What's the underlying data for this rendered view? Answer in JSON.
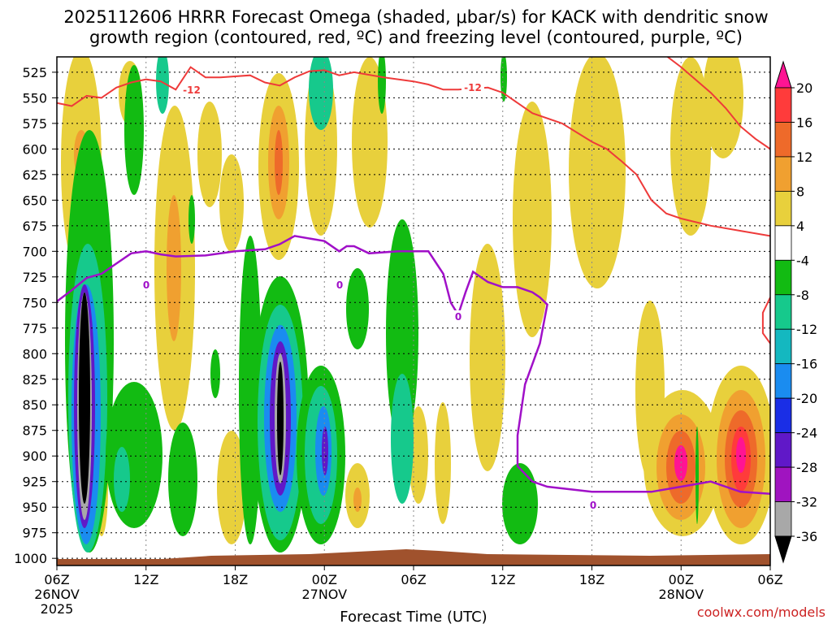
{
  "chart_data": {
    "type": "heatmap",
    "title_line1": "2025112606 HRRR Forecast Omega (shaded, μbar/s) for KACK with dendritic snow",
    "title_line2": "growth region (contoured, red, ºC) and freezing level (contoured, purple, ºC)",
    "xlabel": "Forecast Time (UTC)",
    "credit": "coolwx.com/models",
    "x_ticks": [
      {
        "hour": 0,
        "label": "06Z",
        "sub": "26NOV",
        "sub2": "2025"
      },
      {
        "hour": 6,
        "label": "12Z",
        "sub": "",
        "sub2": ""
      },
      {
        "hour": 12,
        "label": "18Z",
        "sub": "",
        "sub2": ""
      },
      {
        "hour": 18,
        "label": "00Z",
        "sub": "27NOV",
        "sub2": ""
      },
      {
        "hour": 24,
        "label": "06Z",
        "sub": "",
        "sub2": ""
      },
      {
        "hour": 30,
        "label": "12Z",
        "sub": "",
        "sub2": ""
      },
      {
        "hour": 36,
        "label": "18Z",
        "sub": "",
        "sub2": ""
      },
      {
        "hour": 42,
        "label": "00Z",
        "sub": "28NOV",
        "sub2": ""
      },
      {
        "hour": 48,
        "label": "06Z",
        "sub": "",
        "sub2": ""
      }
    ],
    "xlim_hours": [
      0,
      48
    ],
    "y_levels": [
      525,
      550,
      575,
      600,
      625,
      650,
      675,
      700,
      725,
      750,
      775,
      800,
      825,
      850,
      875,
      900,
      925,
      950,
      975,
      1000
    ],
    "ylim_hpa": [
      510,
      1007
    ],
    "colorbar": {
      "labels": [
        "20",
        "16",
        "12",
        "8",
        "4",
        "-4",
        "-8",
        "-12",
        "-16",
        "-20",
        "-24",
        "-28",
        "-32",
        "-36"
      ],
      "colors": [
        "#ff1493",
        "#ff3b3b",
        "#ee6a2a",
        "#f0a030",
        "#e8d03c",
        "#ffffff",
        "#12bb12",
        "#16c98c",
        "#14b8c0",
        "#1a8cf0",
        "#1a2ee6",
        "#6018c8",
        "#a014c0",
        "#a8a8a8",
        "#000000"
      ]
    },
    "dgz_contour_label": "-12",
    "freezing_contour_label": "0",
    "dgz_line_upper": [
      [
        0,
        555
      ],
      [
        1,
        558
      ],
      [
        2,
        548
      ],
      [
        3,
        550
      ],
      [
        4,
        540
      ],
      [
        5,
        535
      ],
      [
        6,
        532
      ],
      [
        7,
        534
      ],
      [
        8,
        542
      ],
      [
        9,
        520
      ],
      [
        10,
        530
      ],
      [
        11,
        530
      ],
      [
        13,
        528
      ],
      [
        14,
        535
      ],
      [
        15,
        538
      ],
      [
        16,
        530
      ],
      [
        17,
        524
      ],
      [
        18,
        523
      ],
      [
        19,
        528
      ],
      [
        20,
        525
      ],
      [
        22,
        530
      ],
      [
        24,
        534
      ],
      [
        25,
        537
      ],
      [
        26,
        542
      ],
      [
        27,
        542
      ],
      [
        28,
        541
      ],
      [
        29,
        540
      ],
      [
        30,
        545
      ],
      [
        31,
        555
      ],
      [
        32,
        565
      ],
      [
        34,
        575
      ],
      [
        36,
        593
      ],
      [
        37,
        600
      ],
      [
        38,
        612
      ],
      [
        39,
        625
      ],
      [
        40,
        650
      ],
      [
        41,
        663
      ],
      [
        42,
        668
      ],
      [
        44,
        675
      ],
      [
        46,
        680
      ],
      [
        48,
        685
      ]
    ],
    "dgz_line_right": [
      [
        40,
        498
      ],
      [
        42,
        520
      ],
      [
        44,
        545
      ],
      [
        45,
        560
      ],
      [
        46,
        578
      ],
      [
        47,
        590
      ],
      [
        48,
        600
      ]
    ],
    "dgz_line_edge": [
      [
        48,
        745
      ],
      [
        47.5,
        760
      ],
      [
        47.5,
        780
      ],
      [
        48,
        790
      ]
    ],
    "freezing_line": [
      [
        0,
        749
      ],
      [
        1,
        738
      ],
      [
        2,
        726
      ],
      [
        3,
        722
      ],
      [
        4,
        712
      ],
      [
        5,
        702
      ],
      [
        6,
        700
      ],
      [
        7,
        703
      ],
      [
        8,
        705
      ],
      [
        10,
        704
      ],
      [
        12,
        700
      ],
      [
        14,
        698
      ],
      [
        15,
        693
      ],
      [
        16,
        685
      ],
      [
        18,
        690
      ],
      [
        19,
        700
      ],
      [
        19.5,
        695
      ],
      [
        20,
        695
      ],
      [
        21,
        702
      ],
      [
        23,
        700
      ],
      [
        24,
        700
      ],
      [
        25,
        700
      ],
      [
        26,
        722
      ],
      [
        26.5,
        750
      ],
      [
        27,
        762
      ],
      [
        27.5,
        740
      ],
      [
        28,
        720
      ],
      [
        29,
        730
      ],
      [
        30,
        735
      ],
      [
        31,
        735
      ],
      [
        32,
        740
      ],
      [
        32.5,
        745
      ],
      [
        33,
        752
      ],
      [
        32.5,
        790
      ],
      [
        31.5,
        830
      ],
      [
        31,
        880
      ],
      [
        31,
        910
      ],
      [
        32,
        925
      ],
      [
        33,
        930
      ],
      [
        36,
        935
      ],
      [
        40,
        935
      ],
      [
        42,
        930
      ],
      [
        44,
        925
      ],
      [
        46,
        935
      ],
      [
        48,
        937
      ]
    ]
  }
}
